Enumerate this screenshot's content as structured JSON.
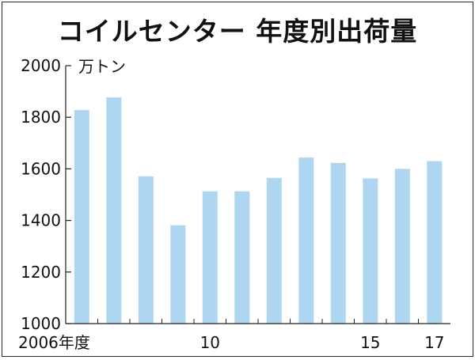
{
  "chart_data": {
    "type": "bar",
    "title": "コイルセンター 年度別出荷量",
    "unit_label": "万トン",
    "categories": [
      "2006",
      "2007",
      "2008",
      "2009",
      "2010",
      "2011",
      "2012",
      "2013",
      "2014",
      "2015",
      "2016",
      "2017"
    ],
    "x_tick_labels": [
      "2006年度",
      "",
      "",
      "",
      "10",
      "",
      "",
      "",
      "",
      "15",
      "",
      "17"
    ],
    "values": [
      1828,
      1877,
      1571,
      1381,
      1513,
      1513,
      1565,
      1644,
      1623,
      1563,
      1600,
      1630
    ],
    "ylim": [
      1000,
      2000
    ],
    "yticks": [
      1000,
      1200,
      1400,
      1600,
      1800,
      2000
    ],
    "grid": false,
    "bar_color": "#aed6f1"
  }
}
